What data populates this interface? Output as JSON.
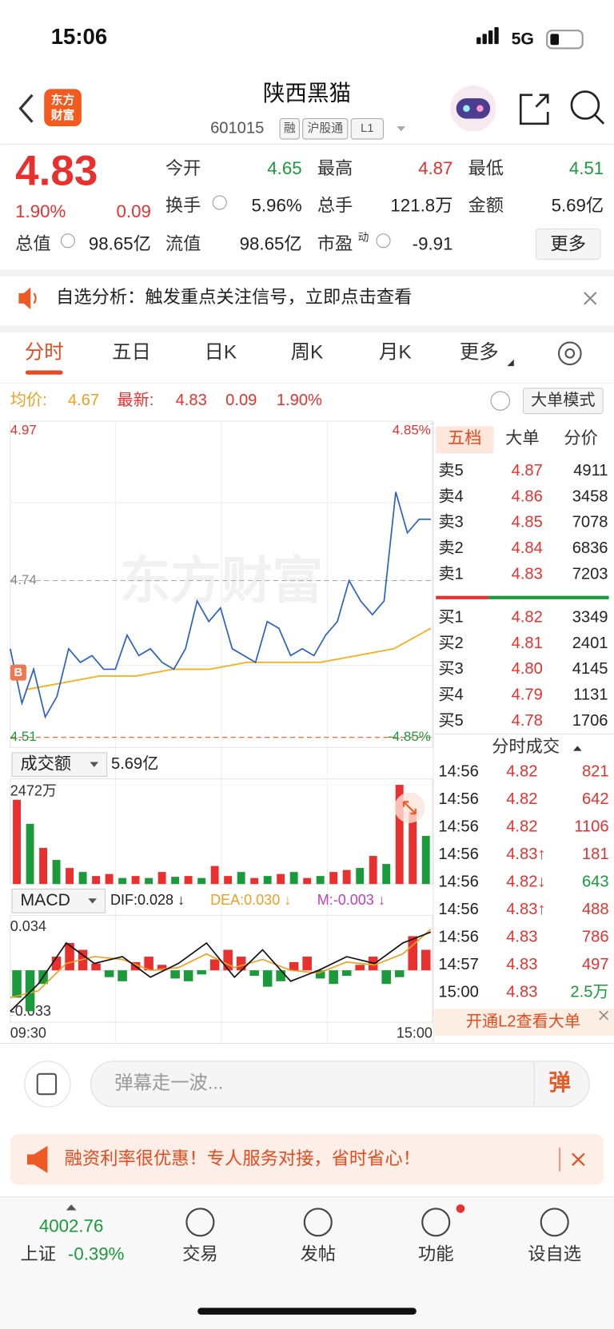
{
  "status_bar": {
    "time": "15:06",
    "network": "5G"
  },
  "header": {
    "logo": [
      "东方",
      "财富"
    ],
    "title": "陕西黑猫",
    "code": "601015",
    "tags": [
      "融",
      "沪股通",
      "L1"
    ]
  },
  "quote": {
    "price": "4.83",
    "change_pct": "1.90%",
    "change": "0.09",
    "total_value_label": "总值",
    "total_value": "98.65亿",
    "stats": [
      {
        "label": "今开",
        "value": "4.65",
        "color": "#1a9a3a"
      },
      {
        "label": "最高",
        "value": "4.87",
        "color": "#e8312f"
      },
      {
        "label": "最低",
        "value": "4.51",
        "color": "#1a9a3a"
      },
      {
        "label": "换手",
        "value": "5.96%",
        "color": "#222222"
      },
      {
        "label": "总手",
        "value": "121.8万",
        "color": "#222222"
      },
      {
        "label": "金额",
        "value": "5.69亿",
        "color": "#222222"
      },
      {
        "label": "流值",
        "value": "98.65亿",
        "color": "#222222"
      },
      {
        "label": "市盈",
        "value": "-9.91",
        "color": "#222222"
      }
    ],
    "pe_superscript": "动",
    "more_button": "更多"
  },
  "notice": {
    "text": "自选分析：触发重点关注信号，立即点击查看"
  },
  "tabs": {
    "items": [
      "分时",
      "五日",
      "日K",
      "周K",
      "月K",
      "更多"
    ],
    "active": 0
  },
  "info_line": {
    "avg_label": "均价:",
    "avg": "4.67",
    "latest_label": "最新:",
    "latest": "4.83",
    "change": "0.09",
    "change_pct": "1.90%",
    "mode_button": "大单模式"
  },
  "intraday": {
    "watermark": "东方财富",
    "marker": "B",
    "ylim": [
      4.51,
      4.97
    ],
    "yticks": [
      4.97,
      4.74,
      4.51
    ],
    "y2lim": [
      -4.85,
      4.85
    ],
    "y2ticks": [
      {
        "value": 4.85,
        "label": "4.85%"
      },
      {
        "value": -4.85,
        "label": "-4.85%"
      }
    ],
    "price": [
      4.64,
      4.56,
      4.61,
      4.54,
      4.57,
      4.64,
      4.62,
      4.63,
      4.61,
      4.61,
      4.66,
      4.63,
      4.64,
      4.62,
      4.61,
      4.64,
      4.71,
      4.68,
      4.7,
      4.64,
      4.63,
      4.62,
      4.68,
      4.67,
      4.63,
      4.64,
      4.63,
      4.66,
      4.68,
      4.74,
      4.71,
      4.69,
      4.71,
      4.87,
      4.81,
      4.83,
      4.83
    ],
    "avg": [
      4.58,
      4.59,
      4.6,
      4.6,
      4.61,
      4.61,
      4.62,
      4.62,
      4.62,
      4.63,
      4.64,
      4.67
    ],
    "price_color": "#2a5fc8",
    "avg_color": "#f5b323",
    "xlabels": [
      "09:30",
      "15:00"
    ]
  },
  "volume": {
    "label": "成交额",
    "total": "5.69亿",
    "ylim": [
      0,
      2472
    ],
    "yticks": [
      {
        "value": 2472,
        "label": "2472万"
      }
    ],
    "values": [
      2100,
      1500,
      900,
      600,
      400,
      300,
      200,
      250,
      150,
      200,
      150,
      300,
      180,
      200,
      150,
      450,
      200,
      300,
      150,
      200,
      250,
      300,
      150,
      200,
      300,
      350,
      400,
      700,
      500,
      2472,
      1800,
      1200
    ],
    "colors": [
      "#e8312f",
      "#1a9a3a",
      "#e8312f",
      "#1a9a3a",
      "#e8312f",
      "#1a9a3a",
      "#e8312f",
      "#e8312f",
      "#1a9a3a",
      "#e8312f",
      "#1a9a3a",
      "#e8312f",
      "#1a9a3a",
      "#e8312f",
      "#1a9a3a",
      "#e8312f",
      "#e8312f",
      "#1a9a3a",
      "#e8312f",
      "#1a9a3a",
      "#e8312f",
      "#1a9a3a",
      "#e8312f",
      "#1a9a3a",
      "#e8312f",
      "#e8312f",
      "#1a9a3a",
      "#e8312f",
      "#1a9a3a",
      "#e8312f",
      "#e8312f",
      "#1a9a3a"
    ]
  },
  "macd": {
    "label": "MACD",
    "dif": "DIF:0.028 ↓",
    "dea": "DEA:0.030 ↓",
    "m": "M:-0.003 ↓",
    "ylim": [
      -0.033,
      0.034
    ],
    "yticks": [
      0.034,
      -0.033
    ],
    "hist": [
      -0.02,
      -0.03,
      -0.01,
      0.01,
      0.02,
      0.015,
      0.005,
      -0.005,
      -0.008,
      0.006,
      0.01,
      0.004,
      -0.006,
      -0.008,
      -0.003,
      0.008,
      0.015,
      0.01,
      -0.004,
      -0.012,
      -0.008,
      0.006,
      0.01,
      -0.006,
      -0.01,
      -0.004,
      0.004,
      0.01,
      -0.01,
      -0.005,
      0.025,
      0.015
    ],
    "dif_line": [
      -0.03,
      -0.01,
      0.02,
      0.005,
      0.01,
      -0.005,
      0.005,
      0.02,
      -0.005,
      0.015,
      -0.008,
      0.0,
      0.01,
      0.005,
      0.02,
      0.028
    ],
    "dea_line": [
      -0.02,
      -0.015,
      0.005,
      0.01,
      0.008,
      0.0,
      0.002,
      0.012,
      0.002,
      0.008,
      0.0,
      -0.002,
      0.006,
      0.004,
      0.012,
      0.03
    ]
  },
  "book": {
    "tabs": [
      "五档",
      "大单",
      "分价"
    ],
    "active": 0,
    "asks": [
      {
        "label": "卖5",
        "price": "4.87",
        "volume": "4911"
      },
      {
        "label": "卖4",
        "price": "4.86",
        "volume": "3458"
      },
      {
        "label": "卖3",
        "price": "4.85",
        "volume": "7078"
      },
      {
        "label": "卖2",
        "price": "4.84",
        "volume": "6836"
      },
      {
        "label": "卖1",
        "price": "4.83",
        "volume": "7203"
      }
    ],
    "bids": [
      {
        "label": "买1",
        "price": "4.82",
        "volume": "3349"
      },
      {
        "label": "买2",
        "price": "4.81",
        "volume": "2401"
      },
      {
        "label": "买3",
        "price": "4.80",
        "volume": "4145"
      },
      {
        "label": "买4",
        "price": "4.79",
        "volume": "1131"
      },
      {
        "label": "买5",
        "price": "4.78",
        "volume": "1706"
      }
    ]
  },
  "trades": {
    "title": "分时成交",
    "rows": [
      {
        "time": "14:56",
        "price": "4.82",
        "volume": "821",
        "color": "#e8312f"
      },
      {
        "time": "14:56",
        "price": "4.82",
        "volume": "642",
        "color": "#e8312f"
      },
      {
        "time": "14:56",
        "price": "4.82",
        "volume": "1106",
        "color": "#e8312f"
      },
      {
        "time": "14:56",
        "price": "4.83↑",
        "volume": "181",
        "color": "#e8312f"
      },
      {
        "time": "14:56",
        "price": "4.82↓",
        "volume": "643",
        "color": "#1a9a3a"
      },
      {
        "time": "14:56",
        "price": "4.83↑",
        "volume": "488",
        "color": "#e8312f"
      },
      {
        "time": "14:56",
        "price": "4.83",
        "volume": "786",
        "color": "#e8312f"
      },
      {
        "time": "14:57",
        "price": "4.83",
        "volume": "497",
        "color": "#e8312f"
      },
      {
        "time": "15:00",
        "price": "4.83",
        "volume": "2.5万",
        "color": "#1a9a3a"
      }
    ],
    "l2_banner": "开通L2查看大单"
  },
  "comment": {
    "placeholder": "弹幕走一波...",
    "button": "弹"
  },
  "ad": {
    "text": "融资利率很优惠！专人服务对接，省时省心！"
  },
  "nav": {
    "index_value": "4002.76",
    "index_name": "上证",
    "index_change": "-0.39%",
    "items": [
      "交易",
      "发帖",
      "功能",
      "设自选"
    ]
  }
}
